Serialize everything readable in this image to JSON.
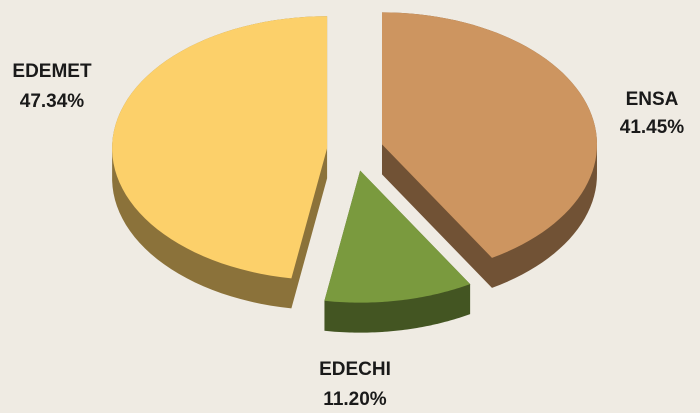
{
  "chart_data": {
    "type": "pie",
    "categories": [
      "ENSA",
      "EDECHI",
      "EDEMET"
    ],
    "values": [
      41.45,
      11.2,
      47.34
    ],
    "value_labels": [
      "41.45%",
      "11.20%",
      "47.34%"
    ],
    "colors": [
      "#cd9560",
      "#7a9a3e",
      "#fcd06a"
    ]
  }
}
